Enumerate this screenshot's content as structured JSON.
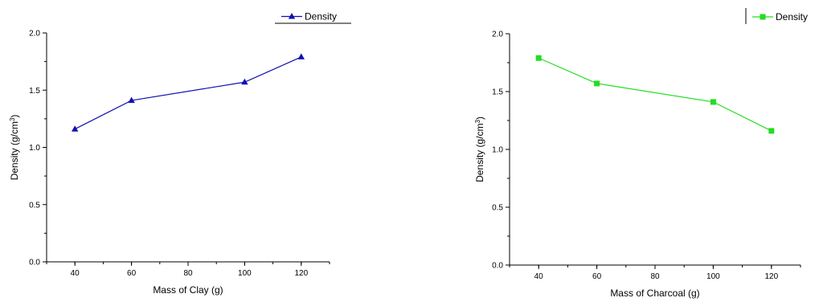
{
  "chart_data": [
    {
      "type": "line",
      "title": "",
      "xlabel": "Mass of Clay (g)",
      "ylabel": "Density (g/cm",
      "ylabel_sup": "3",
      "ylabel_tail": ")",
      "xlim": [
        30,
        130
      ],
      "ylim": [
        0.0,
        2.0
      ],
      "xticks": [
        40,
        60,
        80,
        100,
        120
      ],
      "yticks": [
        "0.0",
        "0.5",
        "1.0",
        "1.5",
        "2.0"
      ],
      "legend_position": "top-right",
      "series": [
        {
          "name": "Density",
          "color": "#1010b0",
          "marker": "triangle",
          "x": [
            40,
            60,
            100,
            120
          ],
          "y": [
            1.16,
            1.41,
            1.57,
            1.79
          ]
        }
      ]
    },
    {
      "type": "line",
      "title": "",
      "xlabel": "Mass of Charcoal (g)",
      "ylabel": "Density (g/cm",
      "ylabel_sup": "3",
      "ylabel_tail": ")",
      "xlim": [
        30,
        130
      ],
      "ylim": [
        0.0,
        2.0
      ],
      "xticks": [
        40,
        60,
        80,
        100,
        120
      ],
      "yticks": [
        "0.0",
        "0.5",
        "1.0",
        "1.5",
        "2.0"
      ],
      "legend_position": "top-right",
      "series": [
        {
          "name": "Density",
          "color": "#22dd22",
          "marker": "square",
          "x": [
            40,
            60,
            100,
            120
          ],
          "y": [
            1.79,
            1.57,
            1.41,
            1.16
          ]
        }
      ]
    }
  ]
}
